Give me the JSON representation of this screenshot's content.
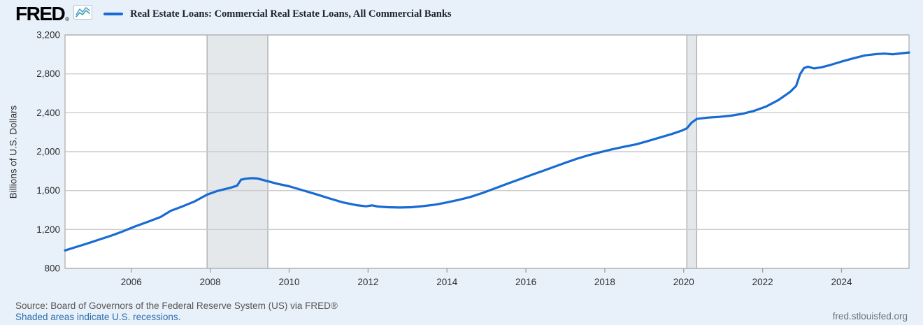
{
  "header": {
    "logo_text": "FRED",
    "logo_registered": "®",
    "series_title": "Real Estate Loans: Commercial Real Estate Loans, All Commercial Banks",
    "legend_color": "#176bd3"
  },
  "footer": {
    "source": "Source: Board of Governors of the Federal Reserve System (US) via FRED®",
    "recession_note": "Shaded areas indicate U.S. recessions.",
    "site": "fred.stlouisfed.org"
  },
  "chart_data": {
    "type": "line",
    "title": "Real Estate Loans: Commercial Real Estate Loans, All Commercial Banks",
    "xlabel": "",
    "ylabel": "Billions of U.S. Dollars",
    "ylim": [
      800,
      3200
    ],
    "y_ticks": [
      800,
      1200,
      1600,
      2000,
      2400,
      2800,
      3200
    ],
    "y_tick_labels": [
      "800",
      "1,200",
      "1,600",
      "2,000",
      "2,400",
      "2,800",
      "3,200"
    ],
    "xlim": [
      2004.32,
      2025.71
    ],
    "x_ticks": [
      2006,
      2008,
      2010,
      2012,
      2014,
      2016,
      2018,
      2020,
      2022,
      2024
    ],
    "x_tick_labels": [
      "2006",
      "2008",
      "2010",
      "2012",
      "2014",
      "2016",
      "2018",
      "2020",
      "2022",
      "2024"
    ],
    "grid": "horizontal",
    "legend_position": "top-left",
    "recessions": [
      [
        2007.92,
        2009.46
      ],
      [
        2020.08,
        2020.33
      ]
    ],
    "colors": {
      "background": "#e8f1fa",
      "plot_background": "#ffffff",
      "gridline": "#cccccc",
      "plot_border": "#b5b5b5",
      "line": "#176bd3",
      "recession_fill": "#e4e8eb",
      "recession_edge": "#a6abb0",
      "axis_text": "#2e2e2e"
    },
    "series": [
      {
        "name": "Real Estate Loans: Commercial Real Estate Loans, All Commercial Banks",
        "points": [
          [
            2004.32,
            985
          ],
          [
            2004.6,
            1020
          ],
          [
            2004.9,
            1058
          ],
          [
            2005.2,
            1098
          ],
          [
            2005.5,
            1138
          ],
          [
            2005.8,
            1183
          ],
          [
            2006.1,
            1232
          ],
          [
            2006.4,
            1276
          ],
          [
            2006.74,
            1328
          ],
          [
            2007.0,
            1392
          ],
          [
            2007.3,
            1438
          ],
          [
            2007.6,
            1488
          ],
          [
            2007.92,
            1558
          ],
          [
            2008.2,
            1598
          ],
          [
            2008.5,
            1628
          ],
          [
            2008.68,
            1650
          ],
          [
            2008.78,
            1712
          ],
          [
            2008.9,
            1722
          ],
          [
            2009.05,
            1728
          ],
          [
            2009.2,
            1724
          ],
          [
            2009.46,
            1696
          ],
          [
            2009.7,
            1670
          ],
          [
            2010.0,
            1644
          ],
          [
            2010.35,
            1602
          ],
          [
            2010.7,
            1560
          ],
          [
            2011.0,
            1522
          ],
          [
            2011.35,
            1480
          ],
          [
            2011.7,
            1450
          ],
          [
            2011.95,
            1438
          ],
          [
            2012.1,
            1448
          ],
          [
            2012.25,
            1436
          ],
          [
            2012.5,
            1429
          ],
          [
            2012.8,
            1426
          ],
          [
            2013.1,
            1429
          ],
          [
            2013.4,
            1440
          ],
          [
            2013.7,
            1455
          ],
          [
            2014.0,
            1478
          ],
          [
            2014.3,
            1505
          ],
          [
            2014.6,
            1535
          ],
          [
            2014.9,
            1575
          ],
          [
            2015.2,
            1620
          ],
          [
            2015.5,
            1666
          ],
          [
            2015.8,
            1710
          ],
          [
            2016.1,
            1755
          ],
          [
            2016.4,
            1798
          ],
          [
            2016.7,
            1842
          ],
          [
            2017.0,
            1886
          ],
          [
            2017.3,
            1928
          ],
          [
            2017.6,
            1965
          ],
          [
            2017.9,
            1996
          ],
          [
            2018.2,
            2026
          ],
          [
            2018.5,
            2052
          ],
          [
            2018.8,
            2076
          ],
          [
            2019.1,
            2110
          ],
          [
            2019.4,
            2146
          ],
          [
            2019.7,
            2182
          ],
          [
            2019.95,
            2216
          ],
          [
            2020.08,
            2240
          ],
          [
            2020.2,
            2298
          ],
          [
            2020.33,
            2336
          ],
          [
            2020.6,
            2350
          ],
          [
            2020.9,
            2358
          ],
          [
            2021.2,
            2370
          ],
          [
            2021.5,
            2390
          ],
          [
            2021.8,
            2422
          ],
          [
            2022.1,
            2466
          ],
          [
            2022.4,
            2530
          ],
          [
            2022.7,
            2616
          ],
          [
            2022.85,
            2676
          ],
          [
            2022.95,
            2798
          ],
          [
            2023.05,
            2860
          ],
          [
            2023.15,
            2874
          ],
          [
            2023.3,
            2856
          ],
          [
            2023.5,
            2868
          ],
          [
            2023.75,
            2895
          ],
          [
            2024.0,
            2926
          ],
          [
            2024.3,
            2960
          ],
          [
            2024.6,
            2990
          ],
          [
            2024.9,
            3004
          ],
          [
            2025.1,
            3008
          ],
          [
            2025.3,
            3001
          ],
          [
            2025.5,
            3010
          ],
          [
            2025.71,
            3020
          ]
        ]
      }
    ]
  }
}
